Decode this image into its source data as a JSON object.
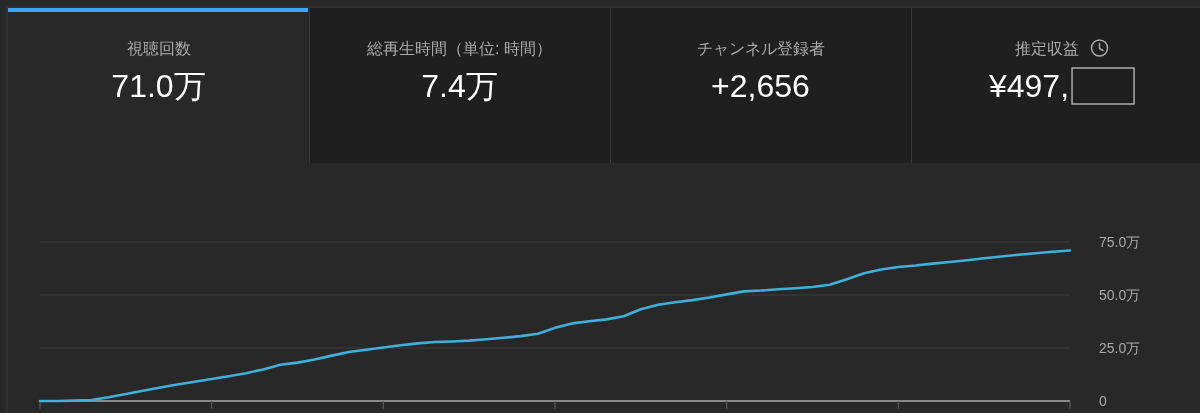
{
  "chart_data": [
    {
      "type": "other",
      "title": "視聴回数",
      "annotations": [
        "71.0万"
      ]
    },
    {
      "type": "other",
      "title": "総再生時間（単位: 時間）",
      "annotations": [
        "7.4万"
      ]
    },
    {
      "type": "other",
      "title": "チャンネル登録者",
      "annotations": [
        "+2,656"
      ]
    },
    {
      "type": "other",
      "title": "推定収益",
      "annotations": [
        "¥497,"
      ]
    },
    {
      "type": "line",
      "categories": [
        null,
        null,
        null,
        null,
        null,
        null,
        null,
        null,
        null,
        null,
        null,
        null,
        null,
        null,
        null,
        null,
        null,
        null,
        null,
        null,
        null,
        null,
        null,
        null,
        null,
        null,
        null,
        null,
        null,
        null,
        null,
        null,
        null,
        null,
        null,
        null,
        null,
        null,
        null,
        null,
        null,
        null,
        null,
        null,
        null,
        null,
        null,
        null,
        null,
        null,
        null,
        null,
        null,
        null,
        null,
        null,
        null,
        null,
        null,
        null,
        null
      ],
      "values": [
        0,
        0,
        0.2,
        0.5,
        1.8,
        3.3,
        4.8,
        6.4,
        7.8,
        9.1,
        10.4,
        11.7,
        13.1,
        14.9,
        17.1,
        18.1,
        19.6,
        21.4,
        23.1,
        24.2,
        25.2,
        26.3,
        27.2,
        27.8,
        28.1,
        28.5,
        29.1,
        29.8,
        30.6,
        31.7,
        34.5,
        36.6,
        37.6,
        38.5,
        40.0,
        43.3,
        45.4,
        46.6,
        47.6,
        48.8,
        50.3,
        51.7,
        52.1,
        52.7,
        53.2,
        53.8,
        54.8,
        57.4,
        60.3,
        62.0,
        63.2,
        63.9,
        64.8,
        65.6,
        66.4,
        67.3,
        68.2,
        69.0,
        69.7,
        70.4,
        71.0
      ],
      "color": "#3eb0dc",
      "ylim": [
        0,
        75
      ],
      "yticks": [
        0,
        {
          "value": 25,
          "label": "25.0万"
        },
        {
          "value": 50,
          "label": "50.0万"
        },
        {
          "value": 75,
          "label": "75.0万"
        }
      ],
      "grid": "y",
      "tick_labels": "y"
    }
  ]
}
